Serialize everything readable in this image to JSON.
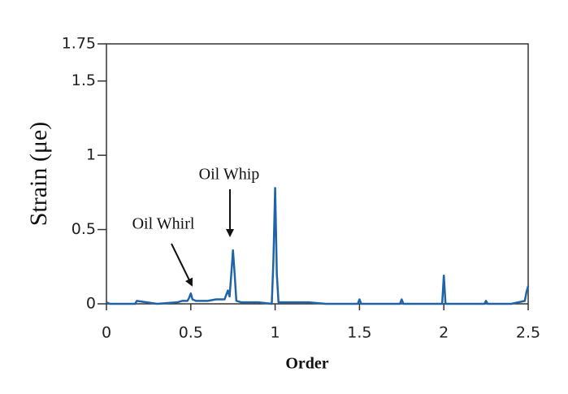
{
  "chart_data": {
    "type": "line",
    "xlabel": "Order",
    "ylabel": "Strain (μe)",
    "annotations": [
      "Oil Whirl",
      "Oil Whip"
    ],
    "x": [
      0,
      0.02,
      0.1,
      0.17,
      0.18,
      0.3,
      0.42,
      0.45,
      0.48,
      0.49,
      0.5,
      0.51,
      0.53,
      0.6,
      0.65,
      0.7,
      0.71,
      0.72,
      0.73,
      0.74,
      0.75,
      0.76,
      0.77,
      0.8,
      0.9,
      0.98,
      0.99,
      1.0,
      1.01,
      1.02,
      1.1,
      1.2,
      1.3,
      1.49,
      1.5,
      1.51,
      1.6,
      1.74,
      1.75,
      1.76,
      1.9,
      1.99,
      2.0,
      2.01,
      2.1,
      2.24,
      2.25,
      2.26,
      2.4,
      2.48,
      2.49,
      2.5
    ],
    "series": [
      {
        "color": "#1f64a8",
        "values": [
          0.01,
          0.0,
          0.0,
          0.0,
          0.02,
          0.0,
          0.01,
          0.02,
          0.02,
          0.04,
          0.07,
          0.03,
          0.02,
          0.02,
          0.03,
          0.03,
          0.06,
          0.09,
          0.05,
          0.2,
          0.36,
          0.2,
          0.02,
          0.01,
          0.01,
          0.0,
          0.3,
          0.78,
          0.2,
          0.01,
          0.01,
          0.01,
          0.0,
          0.0,
          0.03,
          0.0,
          0.0,
          0.0,
          0.03,
          0.0,
          0.0,
          0.0,
          0.19,
          0.0,
          0.0,
          0.0,
          0.02,
          0.0,
          0.0,
          0.02,
          0.08,
          0.12
        ]
      }
    ],
    "xlim": [
      0,
      2.5
    ],
    "xticks": [
      0,
      0.5,
      1,
      1.5,
      2,
      2.5
    ],
    "ylim": [
      0,
      1.75
    ],
    "yticks": [
      0,
      0.5,
      1,
      1.5,
      1.75
    ]
  }
}
